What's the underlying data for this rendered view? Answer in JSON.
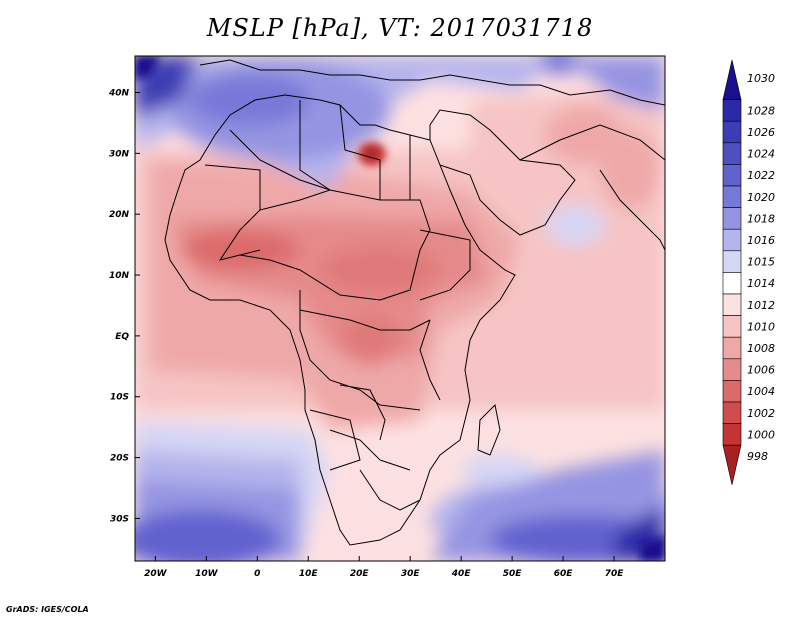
{
  "title": "MSLP [hPa], VT: 2017031718",
  "credit": "GrADS: IGES/COLA",
  "map": {
    "region": "Africa and Middle East",
    "lon_range": [
      -24,
      80
    ],
    "lat_range": [
      -37,
      46
    ],
    "x_ticks": [
      {
        "lon": -20,
        "label": "20W"
      },
      {
        "lon": -10,
        "label": "10W"
      },
      {
        "lon": 0,
        "label": "0"
      },
      {
        "lon": 10,
        "label": "10E"
      },
      {
        "lon": 20,
        "label": "20E"
      },
      {
        "lon": 30,
        "label": "30E"
      },
      {
        "lon": 40,
        "label": "40E"
      },
      {
        "lon": 50,
        "label": "50E"
      },
      {
        "lon": 60,
        "label": "60E"
      },
      {
        "lon": 70,
        "label": "70E"
      }
    ],
    "y_ticks": [
      {
        "lat": 40,
        "label": "40N"
      },
      {
        "lat": 30,
        "label": "30N"
      },
      {
        "lat": 20,
        "label": "20N"
      },
      {
        "lat": 10,
        "label": "10N"
      },
      {
        "lat": 0,
        "label": "EQ"
      },
      {
        "lat": -10,
        "label": "10S"
      },
      {
        "lat": -20,
        "label": "20S"
      },
      {
        "lat": -30,
        "label": "30S"
      }
    ]
  },
  "colorbar": {
    "levels": [
      {
        "label": "1030",
        "color": "#1a0f8f"
      },
      {
        "label": "1028",
        "color": "#2a2aa6"
      },
      {
        "label": "1026",
        "color": "#3c3cb4"
      },
      {
        "label": "1024",
        "color": "#4f4fc2"
      },
      {
        "label": "1022",
        "color": "#6262cf"
      },
      {
        "label": "1020",
        "color": "#7878d9"
      },
      {
        "label": "1018",
        "color": "#9494e2"
      },
      {
        "label": "1016",
        "color": "#b4b4ec"
      },
      {
        "label": "1015",
        "color": "#d6d6f5"
      },
      {
        "label": "1014",
        "color": "#ffffff"
      },
      {
        "label": "1012",
        "color": "#fde1e1"
      },
      {
        "label": "1010",
        "color": "#f6c4c4"
      },
      {
        "label": "1008",
        "color": "#efa8a8"
      },
      {
        "label": "1006",
        "color": "#e58a8a"
      },
      {
        "label": "1004",
        "color": "#db6b6b"
      },
      {
        "label": "1002",
        "color": "#d14d4d"
      },
      {
        "label": "1000",
        "color": "#c43434"
      },
      {
        "label": "998",
        "color": "#a82020"
      }
    ]
  }
}
